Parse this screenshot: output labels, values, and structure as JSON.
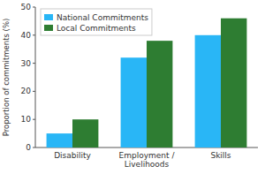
{
  "chart_data": {
    "type": "bar",
    "categories": [
      "Disability",
      "Employment /\nLivelihoods",
      "Skills"
    ],
    "series": [
      {
        "name": "National Commitments",
        "color": "#29b6f6",
        "values": [
          5,
          32,
          40
        ]
      },
      {
        "name": "Local Commitments",
        "color": "#2e7d32",
        "values": [
          10,
          38,
          46
        ]
      }
    ],
    "ylabel": "Proportion of commitments (%)",
    "ylim": [
      0,
      50
    ],
    "yticks": [
      0,
      10,
      20,
      30,
      40,
      50
    ],
    "legend": "upper left"
  }
}
